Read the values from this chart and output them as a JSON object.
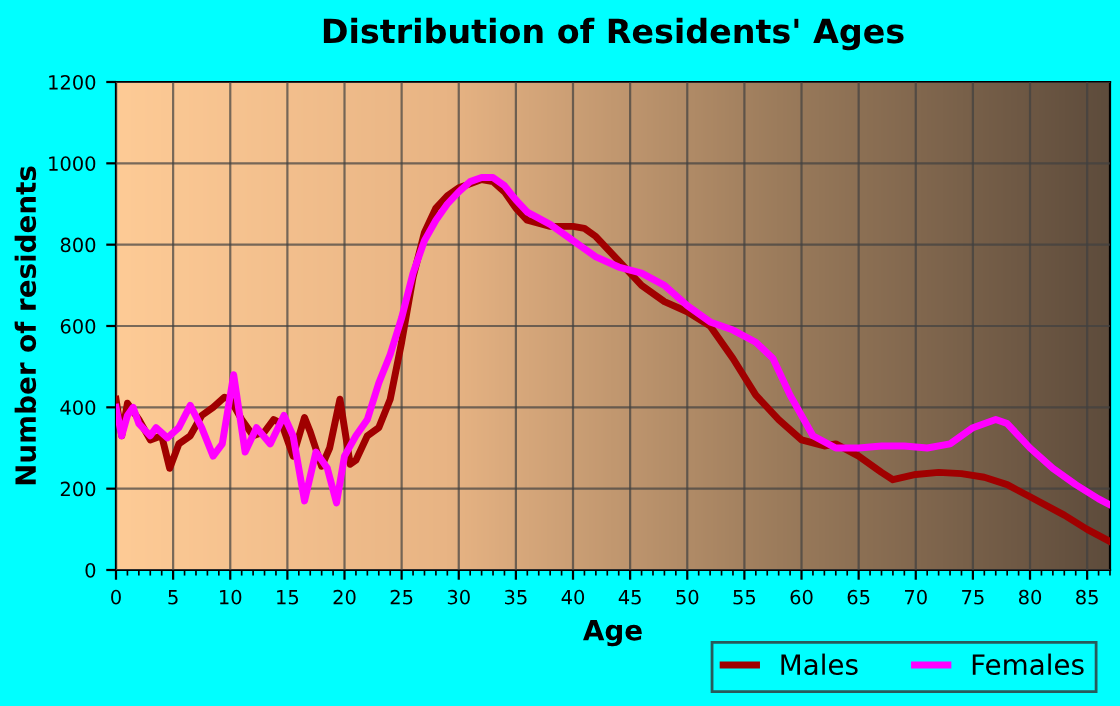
{
  "chart_data": {
    "type": "line",
    "title": "Distribution of Residents' Ages",
    "xlabel": "Age",
    "ylabel": "Number of residents",
    "xlim": [
      0,
      87
    ],
    "xticks": [
      0,
      5,
      10,
      15,
      20,
      25,
      30,
      35,
      40,
      45,
      50,
      55,
      60,
      65,
      70,
      75,
      80,
      85
    ],
    "ylim": [
      0,
      1200
    ],
    "yticks": [
      0,
      200,
      400,
      600,
      800,
      1000,
      1200
    ],
    "grid": true,
    "legend": "bottom right",
    "line_style": "solid",
    "series": [
      {
        "name": "Males",
        "color": "#a00000",
        "x": [
          0,
          0.5,
          1,
          2,
          3,
          4,
          4.7,
          5.5,
          6.5,
          7.5,
          8.5,
          9.5,
          10,
          11,
          12,
          13,
          13.8,
          14.5,
          15.5,
          16.5,
          17,
          18,
          18.7,
          19.6,
          20.5,
          21,
          22,
          23,
          24,
          25,
          26,
          27,
          28,
          29,
          30,
          31,
          32,
          33,
          34,
          35,
          36,
          38,
          40,
          41,
          42,
          44,
          46,
          48,
          50,
          52,
          54,
          56,
          58,
          60,
          62,
          63,
          65,
          67,
          68,
          70,
          72,
          74,
          76,
          78,
          80,
          83,
          85,
          87
        ],
        "values": [
          420,
          330,
          410,
          370,
          320,
          330,
          250,
          310,
          330,
          380,
          400,
          425,
          420,
          370,
          330,
          340,
          370,
          360,
          280,
          375,
          340,
          255,
          300,
          420,
          260,
          270,
          330,
          350,
          420,
          560,
          720,
          830,
          890,
          920,
          940,
          950,
          960,
          955,
          930,
          890,
          860,
          845,
          845,
          840,
          820,
          760,
          700,
          660,
          635,
          600,
          520,
          430,
          370,
          320,
          305,
          310,
          280,
          240,
          222,
          235,
          240,
          237,
          228,
          210,
          180,
          135,
          100,
          70
        ]
      },
      {
        "name": "Females",
        "color": "#ff00ff",
        "x": [
          0,
          0.5,
          1,
          1.5,
          2,
          3,
          3.5,
          4.5,
          5.5,
          6.5,
          7.5,
          8.5,
          9.3,
          10.3,
          11.3,
          12.3,
          13.5,
          14.7,
          15.5,
          16.5,
          17.5,
          18.5,
          19.3,
          20,
          21,
          22,
          23,
          24,
          25,
          26,
          27,
          28,
          29,
          30,
          31,
          32,
          33,
          34,
          35,
          36,
          38,
          40,
          42,
          44,
          46,
          48,
          50,
          52,
          54,
          56,
          57.5,
          59,
          61,
          63,
          65,
          67,
          69,
          71,
          73,
          75,
          77,
          78,
          80,
          82,
          84,
          86,
          87
        ],
        "values": [
          400,
          330,
          380,
          400,
          360,
          330,
          350,
          325,
          350,
          405,
          350,
          280,
          310,
          480,
          290,
          350,
          310,
          380,
          330,
          170,
          290,
          250,
          165,
          280,
          330,
          370,
          460,
          530,
          620,
          730,
          810,
          860,
          900,
          930,
          955,
          965,
          965,
          945,
          910,
          880,
          850,
          810,
          770,
          745,
          730,
          700,
          650,
          610,
          590,
          560,
          520,
          430,
          330,
          300,
          300,
          305,
          305,
          300,
          310,
          350,
          370,
          360,
          300,
          250,
          210,
          175,
          160
        ]
      }
    ]
  }
}
